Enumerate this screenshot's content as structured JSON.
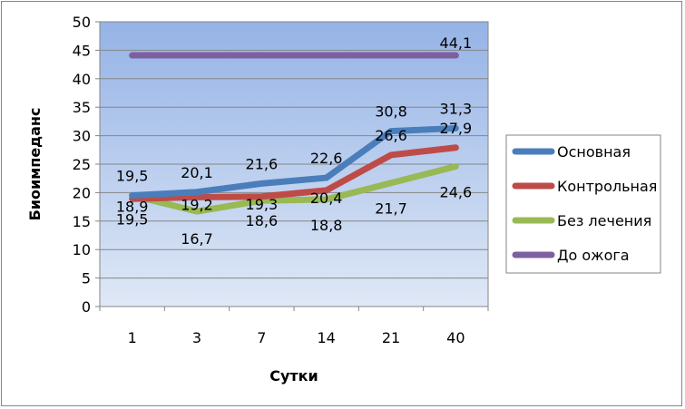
{
  "chart_data": {
    "type": "line",
    "title": "",
    "xlabel": "Сутки",
    "ylabel": "Биоимпеданс",
    "categories": [
      "1",
      "3",
      "7",
      "14",
      "21",
      "40"
    ],
    "ylim": [
      0,
      50
    ],
    "yticks": [
      "0",
      "5",
      "10",
      "15",
      "20",
      "25",
      "30",
      "35",
      "40",
      "45",
      "50"
    ],
    "grid": true,
    "legend_position": "right",
    "plot_background": [
      "#95b3e6",
      "#dfe8f6"
    ],
    "series": [
      {
        "name": "Основная",
        "color": "#4a7ebb",
        "values": [
          19.5,
          20.1,
          21.6,
          22.6,
          30.8,
          31.3
        ],
        "labels": [
          "19,5",
          "20,1",
          "21,6",
          "22,6",
          "30,8",
          "31,3"
        ]
      },
      {
        "name": "Контрольная",
        "color": "#be4b48",
        "values": [
          18.9,
          19.2,
          19.3,
          20.4,
          26.6,
          27.9
        ],
        "labels": [
          "18,9",
          "19,2",
          "19,3",
          "20,4",
          "26,6",
          "27,9"
        ]
      },
      {
        "name": "Без лечения",
        "color": "#98b954",
        "values": [
          19.5,
          16.7,
          18.6,
          18.8,
          21.7,
          24.6
        ],
        "labels": [
          "19,5",
          "16,7",
          "18,6",
          "18,8",
          "21,7",
          "24,6"
        ]
      },
      {
        "name": "До ожога",
        "color": "#7d60a0",
        "values": [
          44.1,
          44.1,
          44.1,
          44.1,
          44.1,
          44.1
        ],
        "labels": [
          "",
          "",
          "",
          "",
          "",
          "44,1"
        ]
      }
    ]
  }
}
